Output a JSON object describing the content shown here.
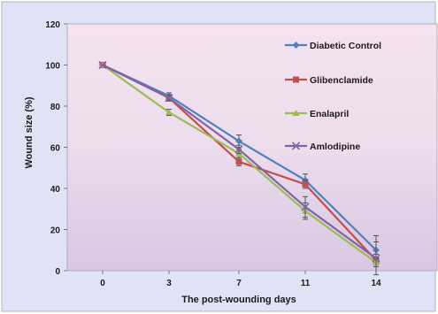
{
  "chart_data": {
    "type": "line",
    "title": "",
    "xlabel": "The post-wounding days",
    "ylabel": "Wound size (%)",
    "categories": [
      "0",
      "3",
      "7",
      "11",
      "14"
    ],
    "ylim": [
      0,
      120
    ],
    "yticks": [
      0,
      20,
      40,
      60,
      80,
      100,
      120
    ],
    "grid": false,
    "legend_position": "right",
    "series": [
      {
        "name": "Diabetic Control",
        "color": "#4f81bd",
        "marker": "diamond",
        "values": [
          100,
          85,
          63,
          44,
          10
        ],
        "errors": [
          0,
          1.5,
          3,
          3,
          7
        ]
      },
      {
        "name": "Glibenclamide",
        "color": "#c0504d",
        "marker": "square",
        "values": [
          100,
          84,
          53,
          42,
          5
        ],
        "errors": [
          0,
          1.5,
          2,
          2,
          3
        ]
      },
      {
        "name": "Enalapril",
        "color": "#9bbb59",
        "marker": "triangle",
        "values": [
          100,
          77,
          57,
          29,
          4
        ],
        "errors": [
          0,
          1.5,
          2,
          4,
          2
        ]
      },
      {
        "name": "Amlodipine",
        "color": "#8064a2",
        "marker": "x",
        "values": [
          100,
          84,
          59,
          31,
          6
        ],
        "errors": [
          0,
          1.5,
          2,
          5,
          8
        ]
      }
    ]
  }
}
